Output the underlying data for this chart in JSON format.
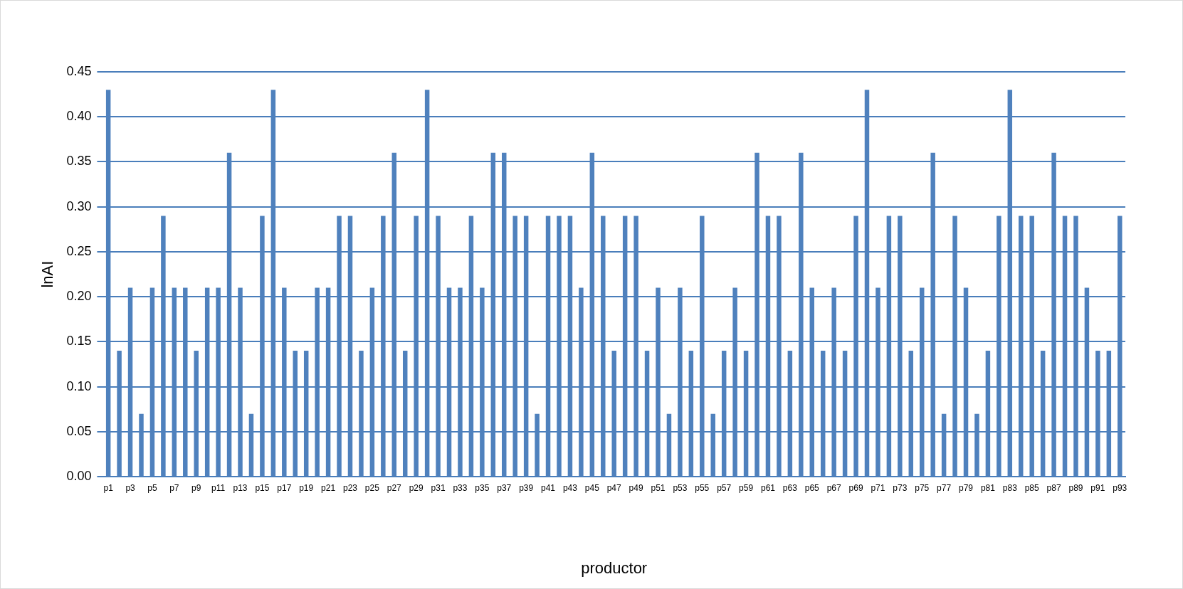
{
  "chart_data": {
    "type": "bar",
    "xlabel": "productor",
    "ylabel": "lnAI",
    "color": "#4f81bd",
    "categories": [
      "p1",
      null,
      "p3",
      null,
      "p5",
      null,
      "p7",
      null,
      "p9",
      null,
      "p11",
      null,
      "p13",
      null,
      "p15",
      null,
      "p17",
      null,
      "p19",
      null,
      "p21",
      null,
      "p23",
      null,
      "p25",
      null,
      "p27",
      null,
      "p29",
      null,
      "p31",
      null,
      "p33",
      null,
      "p35",
      null,
      "p37",
      null,
      "p39",
      null,
      "p41",
      null,
      "p43",
      null,
      "p45",
      null,
      "p47",
      null,
      "p49",
      null,
      "p51",
      null,
      "p53",
      null,
      "p55",
      null,
      "p57",
      null,
      "p59",
      null,
      "p61",
      null,
      "p63",
      null,
      "p65",
      null,
      "p67",
      null,
      "p69",
      null,
      "p71",
      null,
      "p73",
      null,
      "p75",
      null,
      "p77",
      null,
      "p79",
      null,
      "p81",
      null,
      "p83",
      null,
      "p85",
      null,
      "p87",
      null,
      "p89",
      null,
      "p91",
      null,
      "p93"
    ],
    "values": [
      0.43,
      0.14,
      0.21,
      0.07,
      0.21,
      0.29,
      0.21,
      0.21,
      0.14,
      0.21,
      0.21,
      0.36,
      0.21,
      0.07,
      0.29,
      0.43,
      0.21,
      0.14,
      0.14,
      0.21,
      0.21,
      0.29,
      0.29,
      0.14,
      0.21,
      0.29,
      0.36,
      0.14,
      0.29,
      0.43,
      0.29,
      0.21,
      0.21,
      0.29,
      0.21,
      0.36,
      0.36,
      0.29,
      0.29,
      0.07,
      0.29,
      0.29,
      0.29,
      0.21,
      0.36,
      0.29,
      0.14,
      0.29,
      0.29,
      0.14,
      0.21,
      0.07,
      0.21,
      0.14,
      0.29,
      0.07,
      0.14,
      0.21,
      0.14,
      0.36,
      0.29,
      0.29,
      0.14,
      0.36,
      0.21,
      0.14,
      0.21,
      0.14,
      0.29,
      0.43,
      0.21,
      0.29,
      0.29,
      0.14,
      0.21,
      0.36,
      0.07,
      0.29,
      0.21,
      0.07,
      0.14,
      0.29,
      0.43,
      0.29,
      0.29,
      0.14,
      0.36,
      0.29,
      0.29,
      0.21,
      0.14,
      0.14,
      0.29
    ],
    "ylim": [
      0,
      0.45
    ],
    "yticks": [
      {
        "value": 0,
        "label": "0.00"
      },
      {
        "value": 0.05,
        "label": "0.05"
      },
      {
        "value": 0.1,
        "label": "0.10"
      },
      {
        "value": 0.15,
        "label": "0.15"
      },
      {
        "value": 0.2,
        "label": "0.20"
      },
      {
        "value": 0.25,
        "label": "0.25"
      },
      {
        "value": 0.3,
        "label": "0.30"
      },
      {
        "value": 0.35,
        "label": "0.35"
      },
      {
        "value": 0.4,
        "label": "0.40"
      },
      {
        "value": 0.45,
        "label": "0.45"
      }
    ],
    "grid": "y"
  }
}
